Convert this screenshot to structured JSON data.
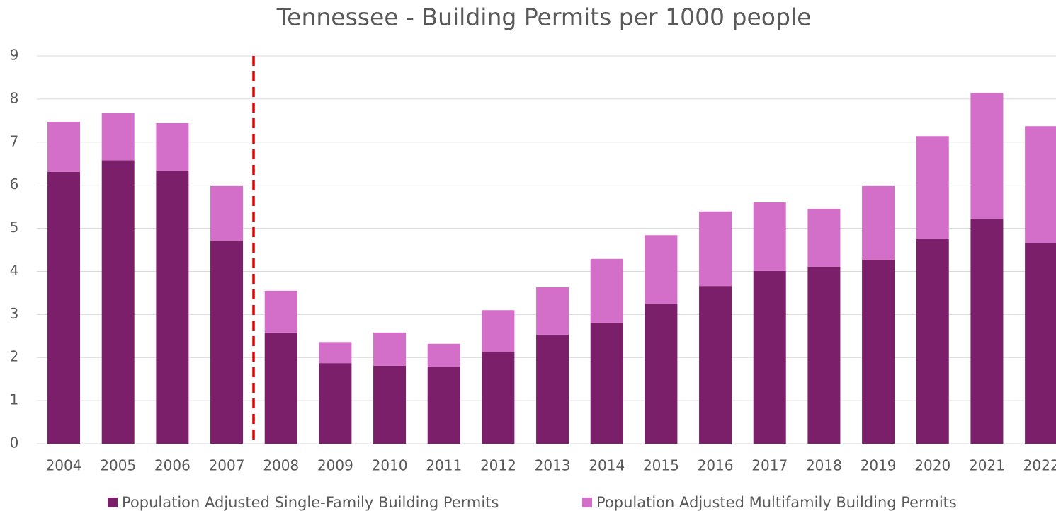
{
  "chart_data": {
    "type": "stacked_bar",
    "title": "Tennessee - Building Permits per 1000 people",
    "categories": [
      "2004",
      "2005",
      "2006",
      "2007",
      "2008",
      "2009",
      "2010",
      "2011",
      "2012",
      "2013",
      "2014",
      "2015",
      "2016",
      "2017",
      "2018",
      "2019",
      "2020",
      "2021",
      "2022"
    ],
    "series": [
      {
        "name": "Population Adjusted Single-Family Building Permits",
        "color": "#7b1f6a",
        "values": [
          6.31,
          6.58,
          6.34,
          4.71,
          2.58,
          1.87,
          1.81,
          1.79,
          2.13,
          2.53,
          2.81,
          3.25,
          3.66,
          4.01,
          4.11,
          4.27,
          4.75,
          5.22,
          4.65
        ]
      },
      {
        "name": "Population Adjusted Multifamily Building Permits",
        "color": "#d36fc9",
        "values": [
          1.16,
          1.09,
          1.1,
          1.27,
          0.97,
          0.49,
          0.77,
          0.53,
          0.97,
          1.1,
          1.48,
          1.59,
          1.73,
          1.59,
          1.34,
          1.71,
          2.39,
          2.92,
          2.72
        ]
      }
    ],
    "ylim": [
      0,
      9
    ],
    "yticks": [
      0,
      1,
      2,
      3,
      4,
      5,
      6,
      7,
      8,
      9
    ],
    "grid": true,
    "legend": "bottom"
  }
}
